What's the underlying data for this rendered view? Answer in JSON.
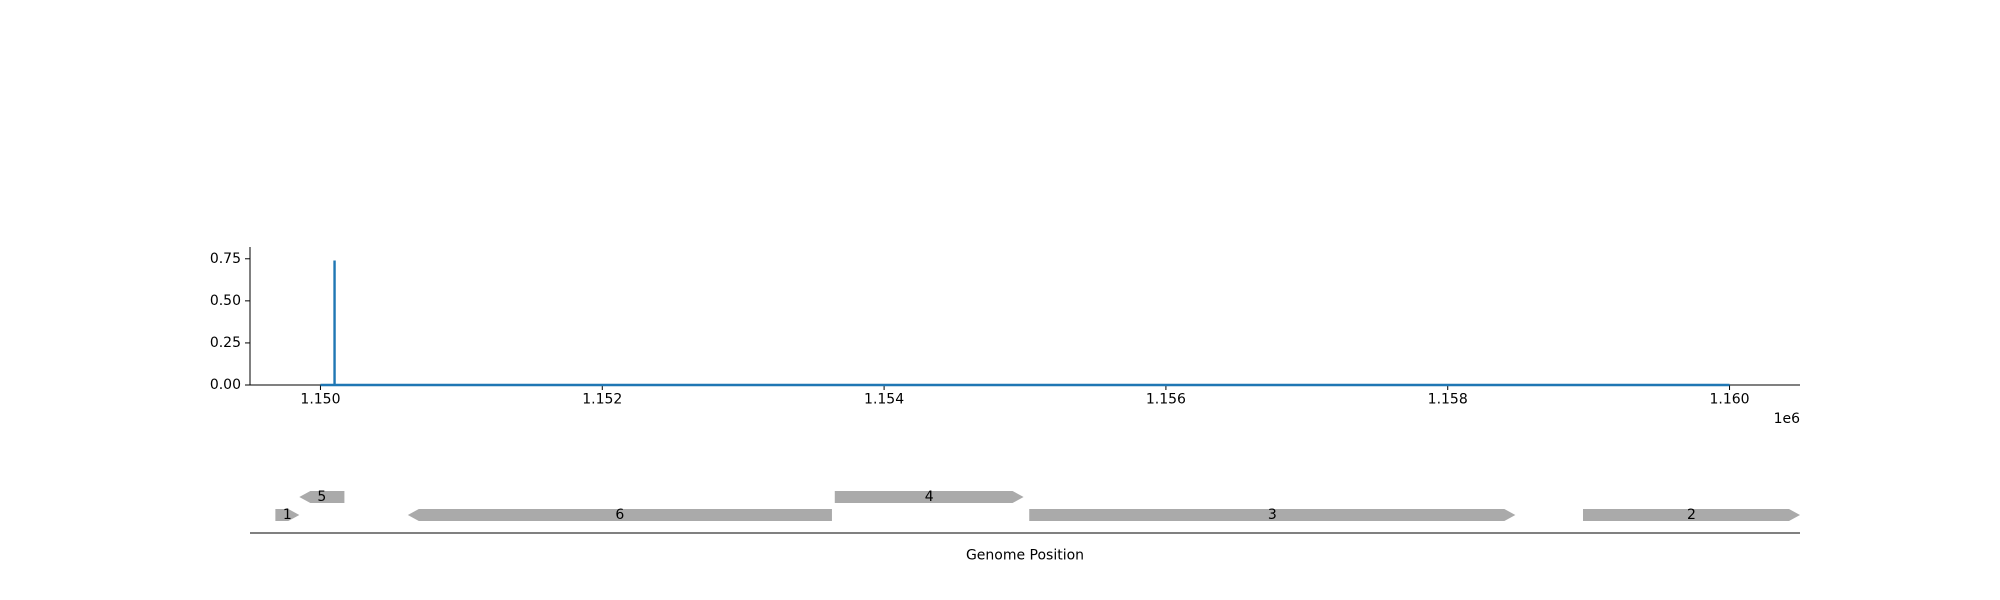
{
  "chart_data": [
    {
      "type": "line",
      "title": "",
      "xlabel": "",
      "ylabel": "",
      "x_offset_label": "1e6",
      "xlim": [
        1149500,
        1160500
      ],
      "ylim": [
        0,
        0.82
      ],
      "x_ticks": [
        1150000,
        1152000,
        1154000,
        1156000,
        1158000,
        1160000
      ],
      "x_tick_labels": [
        "1.150",
        "1.152",
        "1.154",
        "1.156",
        "1.158",
        "1.160"
      ],
      "y_ticks": [
        0,
        0.25,
        0.5,
        0.75
      ],
      "y_tick_labels": [
        "0.00",
        "0.25",
        "0.50",
        "0.75"
      ],
      "grid": false,
      "color": "#1f77b4",
      "series": [
        {
          "x": [
            1150000,
            1150100,
            1150100,
            1150100,
            1160000
          ],
          "y": [
            0,
            0,
            0.74,
            0,
            0
          ]
        }
      ]
    },
    {
      "type": "gene-track",
      "xlabel": "Genome Position",
      "xlim": [
        1149500,
        1160500
      ],
      "color": "#aaaaaa",
      "genes": [
        {
          "label": "1",
          "start": 1149680,
          "end": 1149850,
          "strand": "+",
          "row": 0
        },
        {
          "label": "5",
          "start": 1149850,
          "end": 1150170,
          "strand": "-",
          "row": 1
        },
        {
          "label": "6",
          "start": 1150620,
          "end": 1153630,
          "strand": "-",
          "row": 0
        },
        {
          "label": "4",
          "start": 1153650,
          "end": 1154990,
          "strand": "+",
          "row": 1
        },
        {
          "label": "3",
          "start": 1155030,
          "end": 1158480,
          "strand": "+",
          "row": 0
        },
        {
          "label": "2",
          "start": 1158960,
          "end": 1160500,
          "strand": "+",
          "row": 0
        }
      ]
    }
  ]
}
